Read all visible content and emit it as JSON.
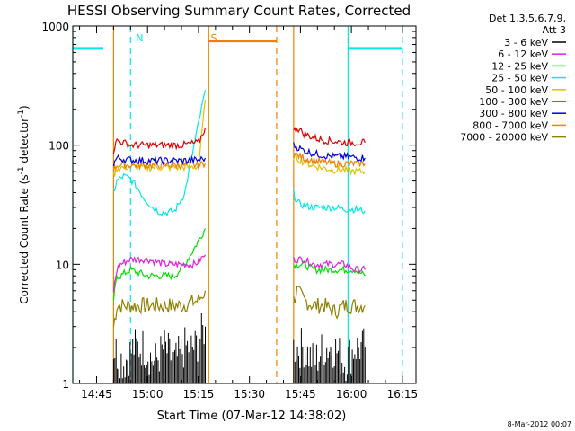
{
  "chart_data": {
    "type": "line",
    "title": "HESSI Observing Summary Count Rates, Corrected",
    "xlabel": "Start Time (07-Mar-12 14:38:02)",
    "ylabel_main": "Corrected Count Rate (s",
    "ylabel_sup1": "-1",
    "ylabel_mid": " detector",
    "ylabel_sup2": "-1",
    "ylabel_end": ")",
    "y_scale": "log",
    "ylim": [
      1,
      1000
    ],
    "xlim": [
      "14:38",
      "16:19"
    ],
    "x_ticks": [
      "14:45",
      "15:00",
      "15:15",
      "15:30",
      "15:45",
      "16:00",
      "16:15"
    ],
    "y_ticks": [
      "1",
      "10",
      "100",
      "1000"
    ],
    "legend_header": [
      "Det 1,3,5,6,7,9,",
      "Att 3"
    ],
    "legend_position": "right",
    "footer_date": "8-Mar-2012 00:07",
    "series": [
      {
        "name": "3 - 6 keV",
        "color": "#000000",
        "segments": [
          {
            "x": [
              "14:50",
              "14:53",
              "14:56",
              "14:59",
              "15:02",
              "15:05",
              "15:08",
              "15:11",
              "15:14",
              "15:17"
            ],
            "y": [
              2,
              1.5,
              2,
              2,
              1.5,
              2,
              1.5,
              2,
              2,
              3
            ]
          },
          {
            "x": [
              "15:43",
              "15:46",
              "15:49",
              "15:52",
              "15:55",
              "15:58",
              "16:01",
              "16:04"
            ],
            "y": [
              2,
              2,
              1.5,
              2,
              2,
              1.5,
              2,
              2
            ]
          }
        ]
      },
      {
        "name": "6 - 12 keV",
        "color": "#e020e0",
        "segments": [
          {
            "x": [
              "14:50",
              "14:51",
              "14:52",
              "14:55",
              "15:00",
              "15:05",
              "15:08",
              "15:11",
              "15:14",
              "15:17"
            ],
            "y": [
              6,
              9,
              10,
              11,
              11,
              10,
              10,
              10,
              10,
              12
            ]
          },
          {
            "x": [
              "15:43",
              "15:46",
              "15:49",
              "15:52",
              "15:55",
              "15:58",
              "16:01",
              "16:04"
            ],
            "y": [
              11,
              11,
              10,
              10,
              10,
              10,
              9,
              9
            ]
          }
        ]
      },
      {
        "name": "12 - 25 keV",
        "color": "#00e000",
        "segments": [
          {
            "x": [
              "14:50",
              "14:51",
              "14:52",
              "14:55",
              "15:00",
              "15:05",
              "15:08",
              "15:11",
              "15:14",
              "15:17"
            ],
            "y": [
              5,
              8,
              8,
              9,
              8,
              8,
              8,
              10,
              14,
              20
            ]
          },
          {
            "x": [
              "15:43",
              "15:46",
              "15:49",
              "15:52",
              "15:55",
              "15:58",
              "16:01",
              "16:04"
            ],
            "y": [
              10,
              10,
              9,
              9,
              9,
              9,
              9,
              8
            ]
          }
        ]
      },
      {
        "name": "25 - 50 keV",
        "color": "#00e8e8",
        "segments": [
          {
            "x": [
              "14:50",
              "14:51",
              "14:53",
              "14:55",
              "14:57",
              "14:59",
              "15:01",
              "15:03",
              "15:05",
              "15:08",
              "15:11",
              "15:14",
              "15:17"
            ],
            "y": [
              40,
              50,
              55,
              52,
              44,
              36,
              31,
              28,
              27,
              28,
              40,
              110,
              290
            ]
          },
          {
            "x": [
              "15:43",
              "15:44",
              "15:46",
              "15:49",
              "15:52",
              "15:55",
              "15:58",
              "16:01",
              "16:04"
            ],
            "y": [
              40,
              33,
              31,
              30,
              30,
              30,
              29,
              29,
              28
            ]
          }
        ]
      },
      {
        "name": "50 - 100 keV",
        "color": "#e0c000",
        "segments": [
          {
            "x": [
              "14:50",
              "14:51",
              "14:55",
              "15:00",
              "15:05",
              "15:10",
              "15:15",
              "15:17"
            ],
            "y": [
              55,
              64,
              66,
              65,
              65,
              65,
              66,
              240
            ]
          },
          {
            "x": [
              "15:43",
              "15:46",
              "15:49",
              "15:52",
              "15:55",
              "15:58",
              "16:01",
              "16:04"
            ],
            "y": [
              80,
              72,
              67,
              64,
              62,
              62,
              60,
              60
            ]
          }
        ]
      },
      {
        "name": "100 - 300 keV",
        "color": "#e00000",
        "segments": [
          {
            "x": [
              "14:50",
              "14:51",
              "14:55",
              "15:00",
              "15:05",
              "15:10",
              "15:15",
              "15:17"
            ],
            "y": [
              90,
              110,
              100,
              100,
              100,
              100,
              105,
              140
            ]
          },
          {
            "x": [
              "15:43",
              "15:44",
              "15:46",
              "15:49",
              "15:52",
              "15:55",
              "15:58",
              "16:01",
              "16:04"
            ],
            "y": [
              130,
              140,
              125,
              115,
              110,
              108,
              105,
              105,
              105
            ]
          }
        ]
      },
      {
        "name": "300 - 800 keV",
        "color": "#0000e0",
        "segments": [
          {
            "x": [
              "14:50",
              "14:51",
              "14:55",
              "15:00",
              "15:05",
              "15:10",
              "15:15",
              "15:17"
            ],
            "y": [
              70,
              78,
              75,
              74,
              74,
              74,
              75,
              78
            ]
          },
          {
            "x": [
              "15:43",
              "15:46",
              "15:49",
              "15:52",
              "15:55",
              "15:58",
              "16:01",
              "16:04"
            ],
            "y": [
              100,
              90,
              85,
              82,
              80,
              80,
              79,
              78
            ]
          }
        ]
      },
      {
        "name": "800 - 7000 keV",
        "color": "#f08000",
        "segments": [
          {
            "x": [
              "14:50",
              "14:51",
              "14:55",
              "15:00",
              "15:05",
              "15:10",
              "15:15",
              "15:17"
            ],
            "y": [
              62,
              68,
              68,
              68,
              68,
              68,
              68,
              70
            ]
          },
          {
            "x": [
              "15:43",
              "15:46",
              "15:49",
              "15:52",
              "15:55",
              "15:58",
              "16:01",
              "16:04"
            ],
            "y": [
              85,
              78,
              74,
              72,
              70,
              70,
              70,
              70
            ]
          }
        ]
      },
      {
        "name": "7000 - 20000 keV",
        "color": "#908000",
        "segments": [
          {
            "x": [
              "14:50",
              "14:51",
              "14:55",
              "15:00",
              "15:05",
              "15:10",
              "15:15",
              "15:17"
            ],
            "y": [
              3,
              4.5,
              4.5,
              4.5,
              4.5,
              4.5,
              5,
              6
            ]
          },
          {
            "x": [
              "15:43",
              "15:44",
              "15:46",
              "15:49",
              "15:52",
              "15:55",
              "15:58",
              "16:01",
              "16:04"
            ],
            "y": [
              5,
              6,
              5,
              4.5,
              4.5,
              4,
              4.5,
              4.5,
              4.5
            ]
          }
        ]
      }
    ],
    "annotations": {
      "cyan_bars": [
        {
          "x": [
            "14:38",
            "14:47"
          ],
          "y": 650
        },
        {
          "x": [
            "15:59",
            "16:15"
          ],
          "y": 650
        }
      ],
      "orange_bars": [
        {
          "x": [
            "15:18",
            "15:38"
          ],
          "y": 750
        }
      ],
      "cyan_solid_lines": [
        "14:38",
        "15:59"
      ],
      "cyan_dashed_lines": [
        "14:55",
        "16:15"
      ],
      "orange_solid_lines": [
        "14:50",
        "15:18",
        "15:43"
      ],
      "orange_dashed_lines": [
        "15:38"
      ],
      "markers": [
        {
          "label": "N",
          "x": "14:55",
          "color": "#00e8e8"
        },
        {
          "label": "S",
          "x": "15:17",
          "color": "#f08000"
        }
      ]
    }
  }
}
